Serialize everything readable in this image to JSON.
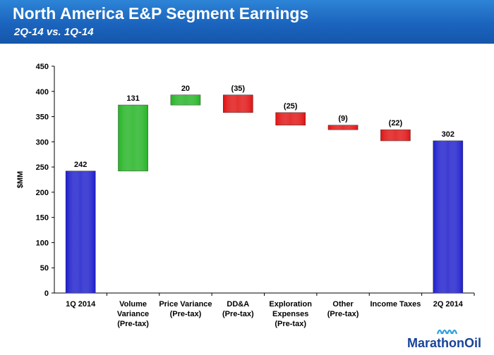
{
  "header": {
    "title": "North America E&P Segment Earnings",
    "subtitle": "2Q-14 vs. 1Q-14"
  },
  "logo": {
    "text": "MarathonOil"
  },
  "colors": {
    "blue": "#1c1ccc",
    "green": "#22b322",
    "red": "#e01010",
    "banner": "#1b64bd"
  },
  "chart_data": {
    "type": "waterfall",
    "ylabel": "$MM",
    "ylim": [
      0,
      450
    ],
    "yticks": [
      0,
      50,
      100,
      150,
      200,
      250,
      300,
      350,
      400,
      450
    ],
    "grid": false,
    "items": [
      {
        "label": [
          "1Q 2014"
        ],
        "value": 242,
        "display": "242",
        "kind": "total"
      },
      {
        "label": [
          "Volume",
          "Variance",
          "(Pre-tax)"
        ],
        "value": 131,
        "display": "131",
        "kind": "increase"
      },
      {
        "label": [
          "Price Variance",
          "(Pre-tax)"
        ],
        "value": 20,
        "display": "20",
        "kind": "increase"
      },
      {
        "label": [
          "DD&A",
          "(Pre-tax)"
        ],
        "value": -35,
        "display": "(35)",
        "kind": "decrease"
      },
      {
        "label": [
          "Exploration",
          "Expenses",
          "(Pre-tax)"
        ],
        "value": -25,
        "display": "(25)",
        "kind": "decrease"
      },
      {
        "label": [
          "Other",
          "(Pre-tax)"
        ],
        "value": -9,
        "display": "(9)",
        "kind": "decrease"
      },
      {
        "label": [
          "Income Taxes"
        ],
        "value": -22,
        "display": "(22)",
        "kind": "decrease"
      },
      {
        "label": [
          "2Q 2014"
        ],
        "value": 302,
        "display": "302",
        "kind": "total"
      }
    ]
  }
}
